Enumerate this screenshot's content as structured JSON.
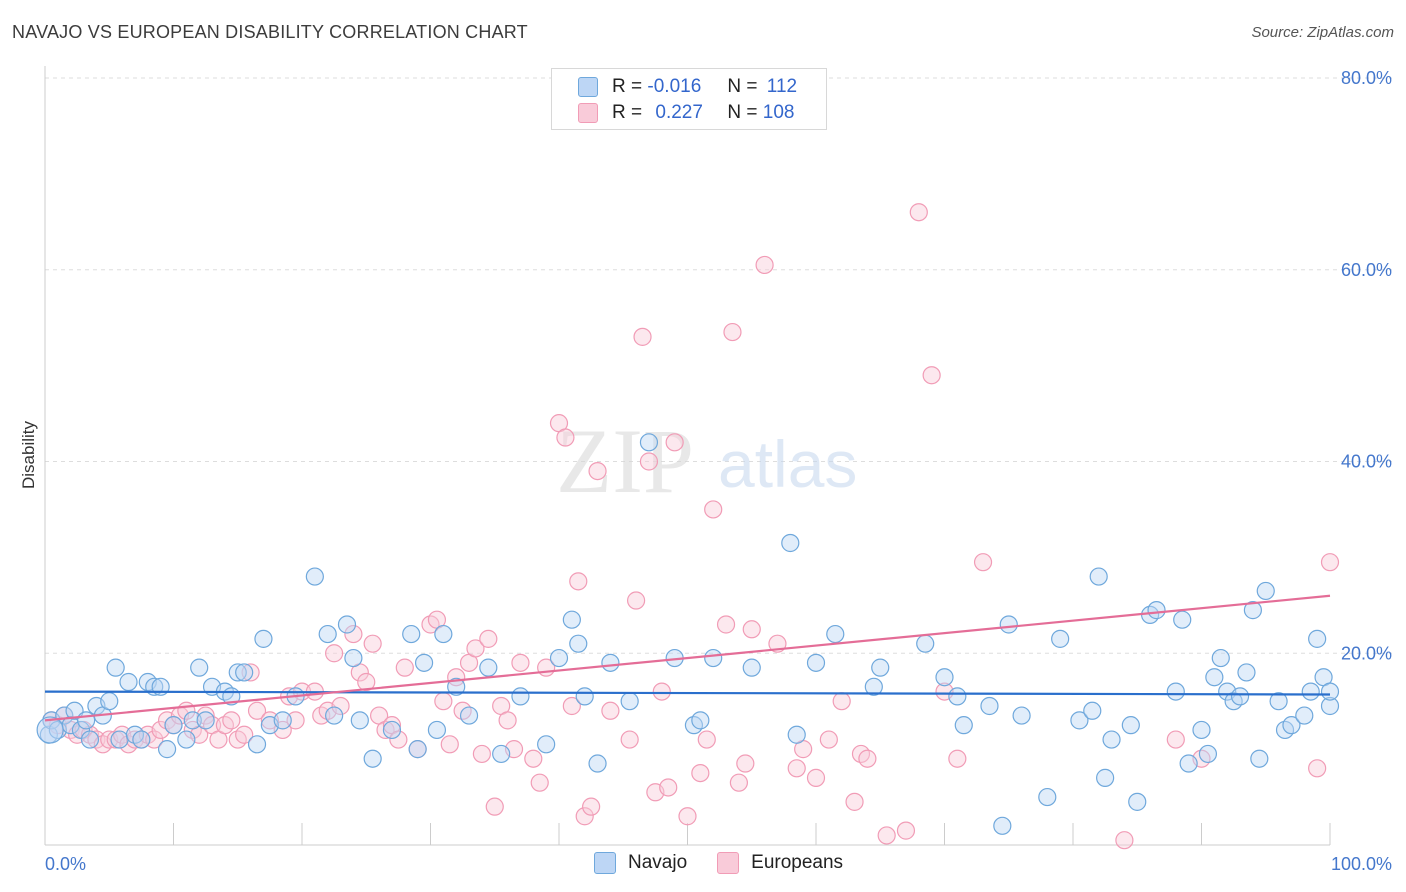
{
  "header": {
    "title": "NAVAJO VS EUROPEAN DISABILITY CORRELATION CHART",
    "source": "Source: ZipAtlas.com"
  },
  "legend": {
    "r_label": "R =",
    "n_label": "N =",
    "navajo_r": "-0.016",
    "navajo_n": "112",
    "europeans_r": "0.227",
    "europeans_n": "108"
  },
  "chart_data": {
    "type": "scatter",
    "title": "NAVAJO VS EUROPEAN DISABILITY CORRELATION CHART",
    "xlabel": "",
    "ylabel": "Disability",
    "xlim": [
      0,
      100
    ],
    "ylim": [
      0,
      80
    ],
    "x_tick_labels": [
      "0.0%",
      "100.0%"
    ],
    "y_tick_labels": [
      "20.0%",
      "40.0%",
      "60.0%",
      "80.0%"
    ],
    "grid": true,
    "legend_position": "top-center",
    "watermark": "ZIPatlas",
    "colors": {
      "navajo": "#6fa8dc",
      "europeans": "#f19cb6",
      "navajo_line": "#2a6fcc",
      "europeans_line": "#e46d97"
    },
    "series": [
      {
        "name": "Navajo",
        "trend": {
          "x": [
            0,
            100
          ],
          "y": [
            16.0,
            15.7
          ]
        },
        "points": [
          [
            0.3,
            11.5
          ],
          [
            0.5,
            13
          ],
          [
            1,
            12
          ],
          [
            1.5,
            13.5
          ],
          [
            2,
            12.5
          ],
          [
            2.3,
            14
          ],
          [
            2.8,
            12
          ],
          [
            3.2,
            13
          ],
          [
            3.5,
            11
          ],
          [
            4,
            14.5
          ],
          [
            4.5,
            13.5
          ],
          [
            5,
            15
          ],
          [
            5.5,
            18.5
          ],
          [
            5.8,
            11
          ],
          [
            6.5,
            17
          ],
          [
            7,
            11.5
          ],
          [
            7.5,
            11
          ],
          [
            8,
            17
          ],
          [
            8.5,
            16.5
          ],
          [
            9,
            16.5
          ],
          [
            9.5,
            10
          ],
          [
            10,
            12.5
          ],
          [
            11,
            11
          ],
          [
            11.5,
            13
          ],
          [
            12,
            18.5
          ],
          [
            12.5,
            13
          ],
          [
            13,
            16.5
          ],
          [
            14,
            16
          ],
          [
            14.5,
            15.5
          ],
          [
            15,
            18
          ],
          [
            15.5,
            18
          ],
          [
            16.5,
            10.5
          ],
          [
            17,
            21.5
          ],
          [
            17.5,
            12.5
          ],
          [
            18.5,
            13
          ],
          [
            19.5,
            15.5
          ],
          [
            21,
            28
          ],
          [
            22,
            22
          ],
          [
            22.5,
            13.5
          ],
          [
            23.5,
            23
          ],
          [
            24,
            19.5
          ],
          [
            24.5,
            13
          ],
          [
            25.5,
            9
          ],
          [
            27,
            12
          ],
          [
            28.5,
            22
          ],
          [
            29,
            10
          ],
          [
            29.5,
            19
          ],
          [
            30.5,
            12
          ],
          [
            31,
            22
          ],
          [
            32,
            16.5
          ],
          [
            33,
            13.5
          ],
          [
            34.5,
            18.5
          ],
          [
            35.5,
            9.5
          ],
          [
            37,
            15.5
          ],
          [
            39,
            10.5
          ],
          [
            40,
            19.5
          ],
          [
            41,
            23.5
          ],
          [
            41.5,
            21
          ],
          [
            42,
            15.5
          ],
          [
            43,
            8.5
          ],
          [
            44,
            19
          ],
          [
            45.5,
            15
          ],
          [
            47,
            42
          ],
          [
            49,
            19.5
          ],
          [
            50.5,
            12.5
          ],
          [
            51,
            13
          ],
          [
            52,
            19.5
          ],
          [
            55,
            18.5
          ],
          [
            58,
            31.5
          ],
          [
            58.5,
            11.5
          ],
          [
            60,
            19
          ],
          [
            61.5,
            22
          ],
          [
            64.5,
            16.5
          ],
          [
            65,
            18.5
          ],
          [
            68.5,
            21
          ],
          [
            70,
            17.5
          ],
          [
            71,
            15.5
          ],
          [
            71.5,
            12.5
          ],
          [
            73.5,
            14.5
          ],
          [
            74.5,
            2
          ],
          [
            75,
            23
          ],
          [
            76,
            13.5
          ],
          [
            78,
            5
          ],
          [
            79,
            21.5
          ],
          [
            80.5,
            13
          ],
          [
            81.5,
            14
          ],
          [
            82,
            28
          ],
          [
            82.5,
            7
          ],
          [
            83,
            11
          ],
          [
            84.5,
            12.5
          ],
          [
            85,
            4.5
          ],
          [
            86,
            24
          ],
          [
            86.5,
            24.5
          ],
          [
            88,
            16
          ],
          [
            88.5,
            23.5
          ],
          [
            89,
            8.5
          ],
          [
            90,
            12
          ],
          [
            90.5,
            9.5
          ],
          [
            91,
            17.5
          ],
          [
            91.5,
            19.5
          ],
          [
            92,
            16
          ],
          [
            92.5,
            15
          ],
          [
            93,
            15.5
          ],
          [
            93.5,
            18
          ],
          [
            94,
            24.5
          ],
          [
            94.5,
            9
          ],
          [
            95,
            26.5
          ],
          [
            96,
            15
          ],
          [
            96.5,
            12
          ],
          [
            97,
            12.5
          ],
          [
            98,
            13.5
          ],
          [
            98.5,
            16
          ],
          [
            99,
            21.5
          ],
          [
            99.5,
            17.5
          ],
          [
            100,
            14.5
          ],
          [
            100,
            16
          ]
        ]
      },
      {
        "name": "Europeans",
        "trend": {
          "x": [
            0,
            100
          ],
          "y": [
            13.0,
            26.0
          ]
        },
        "points": [
          [
            0.5,
            13
          ],
          [
            1,
            12.5
          ],
          [
            1.5,
            13.5
          ],
          [
            2,
            12
          ],
          [
            2.5,
            11.5
          ],
          [
            3,
            12
          ],
          [
            3.5,
            11.5
          ],
          [
            4,
            11
          ],
          [
            4.5,
            10.5
          ],
          [
            5,
            11
          ],
          [
            5.5,
            11
          ],
          [
            6,
            11.5
          ],
          [
            6.5,
            10.5
          ],
          [
            7,
            11
          ],
          [
            7.5,
            11
          ],
          [
            8,
            11.5
          ],
          [
            8.5,
            11
          ],
          [
            9,
            12
          ],
          [
            9.5,
            13
          ],
          [
            10,
            12.5
          ],
          [
            10.5,
            13.5
          ],
          [
            11,
            14
          ],
          [
            11.5,
            12
          ],
          [
            12,
            11.5
          ],
          [
            12.5,
            13.5
          ],
          [
            13,
            12.5
          ],
          [
            13.5,
            11
          ],
          [
            14,
            12.5
          ],
          [
            14.5,
            13
          ],
          [
            15,
            11
          ],
          [
            15.5,
            11.5
          ],
          [
            16,
            18
          ],
          [
            16.5,
            14
          ],
          [
            17.5,
            13
          ],
          [
            18.5,
            12
          ],
          [
            19,
            15.5
          ],
          [
            19.5,
            13
          ],
          [
            20,
            16
          ],
          [
            21,
            16
          ],
          [
            21.5,
            13.5
          ],
          [
            22,
            14
          ],
          [
            22.5,
            20
          ],
          [
            23,
            14.5
          ],
          [
            24,
            22
          ],
          [
            24.5,
            18
          ],
          [
            25,
            17
          ],
          [
            25.5,
            21
          ],
          [
            26,
            13.5
          ],
          [
            26.5,
            12
          ],
          [
            27,
            12.5
          ],
          [
            27.5,
            11
          ],
          [
            28,
            18.5
          ],
          [
            29,
            10
          ],
          [
            30,
            23
          ],
          [
            30.5,
            23.5
          ],
          [
            31,
            15
          ],
          [
            31.5,
            10.5
          ],
          [
            32,
            17.5
          ],
          [
            32.5,
            14
          ],
          [
            33,
            19
          ],
          [
            33.5,
            20.5
          ],
          [
            34,
            9.5
          ],
          [
            34.5,
            21.5
          ],
          [
            35,
            4
          ],
          [
            35.5,
            14.5
          ],
          [
            36,
            13
          ],
          [
            36.5,
            10
          ],
          [
            37,
            19
          ],
          [
            38,
            9
          ],
          [
            38.5,
            6.5
          ],
          [
            39,
            18.5
          ],
          [
            40,
            44
          ],
          [
            40.5,
            42.5
          ],
          [
            41,
            14.5
          ],
          [
            41.5,
            27.5
          ],
          [
            42,
            3
          ],
          [
            42.5,
            4
          ],
          [
            43,
            39
          ],
          [
            44,
            14
          ],
          [
            45.5,
            11
          ],
          [
            46,
            25.5
          ],
          [
            46.5,
            53
          ],
          [
            47,
            40
          ],
          [
            47.5,
            5.5
          ],
          [
            48,
            16
          ],
          [
            48.5,
            6
          ],
          [
            49,
            42
          ],
          [
            50,
            3
          ],
          [
            51,
            7.5
          ],
          [
            51.5,
            11
          ],
          [
            52,
            35
          ],
          [
            53,
            23
          ],
          [
            53.5,
            53.5
          ],
          [
            54,
            6.5
          ],
          [
            54.5,
            8.5
          ],
          [
            55,
            22.5
          ],
          [
            56,
            60.5
          ],
          [
            57,
            21
          ],
          [
            58.5,
            8
          ],
          [
            59,
            10
          ],
          [
            60,
            7
          ],
          [
            61,
            11
          ],
          [
            62,
            15
          ],
          [
            63,
            4.5
          ],
          [
            63.5,
            9.5
          ],
          [
            64,
            9
          ],
          [
            65.5,
            1
          ],
          [
            67,
            1.5
          ],
          [
            68,
            66
          ],
          [
            69,
            49
          ],
          [
            70,
            16
          ],
          [
            71,
            9
          ],
          [
            73,
            29.5
          ],
          [
            84,
            0.5
          ],
          [
            88,
            11
          ],
          [
            90,
            9
          ],
          [
            99,
            8
          ],
          [
            100,
            29.5
          ]
        ]
      }
    ]
  }
}
